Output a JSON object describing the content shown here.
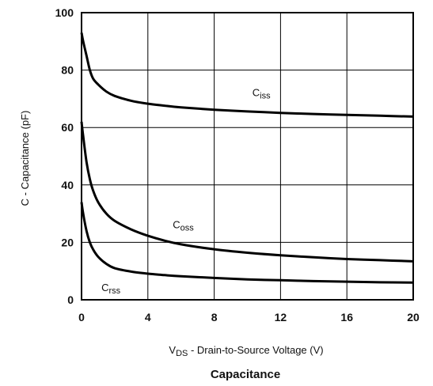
{
  "chart_data": {
    "type": "line",
    "title": "Capacitance",
    "xlabel": {
      "main": "V",
      "sub": "DS",
      "rest": " - Drain-to-Source Voltage (V)"
    },
    "ylabel": "C - Capacitance (pF)",
    "xlim": [
      0,
      20
    ],
    "ylim": [
      0,
      100
    ],
    "xticks": [
      "0",
      "4",
      "8",
      "12",
      "16",
      "20"
    ],
    "yticks": [
      "0",
      "20",
      "40",
      "60",
      "80",
      "100"
    ],
    "grid": true,
    "series": [
      {
        "name": {
          "main": "C",
          "sub": "iss"
        },
        "label_at": [
          10.3,
          71
        ],
        "x": [
          0,
          0.1,
          0.3,
          0.5,
          0.7,
          1,
          1.5,
          2,
          3,
          4,
          5,
          6,
          8,
          10,
          12,
          14,
          16,
          18,
          20
        ],
        "y": [
          93,
          90,
          85,
          80,
          77,
          75,
          72.5,
          71,
          69.3,
          68.3,
          67.6,
          67,
          66.2,
          65.6,
          65.1,
          64.7,
          64.4,
          64.1,
          63.8
        ]
      },
      {
        "name": {
          "main": "C",
          "sub": "oss"
        },
        "label_at": [
          5.5,
          25
        ],
        "x": [
          0,
          0.1,
          0.3,
          0.5,
          0.7,
          1,
          1.5,
          2,
          3,
          4,
          5,
          6,
          8,
          10,
          12,
          14,
          16,
          18,
          20
        ],
        "y": [
          62,
          57,
          48,
          42,
          38,
          34,
          30,
          27.5,
          24.5,
          22.3,
          20.6,
          19.3,
          17.6,
          16.4,
          15.5,
          14.8,
          14.2,
          13.8,
          13.4
        ]
      },
      {
        "name": {
          "main": "C",
          "sub": "rss"
        },
        "label_at": [
          1.2,
          3
        ],
        "x": [
          0,
          0.1,
          0.3,
          0.5,
          0.7,
          1,
          1.5,
          2,
          3,
          4,
          5,
          6,
          8,
          10,
          12,
          14,
          16,
          18,
          20
        ],
        "y": [
          34,
          30,
          24,
          20,
          17.5,
          15,
          12.5,
          11,
          9.8,
          9.1,
          8.6,
          8.2,
          7.6,
          7.1,
          6.8,
          6.5,
          6.3,
          6.1,
          6.0
        ]
      }
    ]
  }
}
